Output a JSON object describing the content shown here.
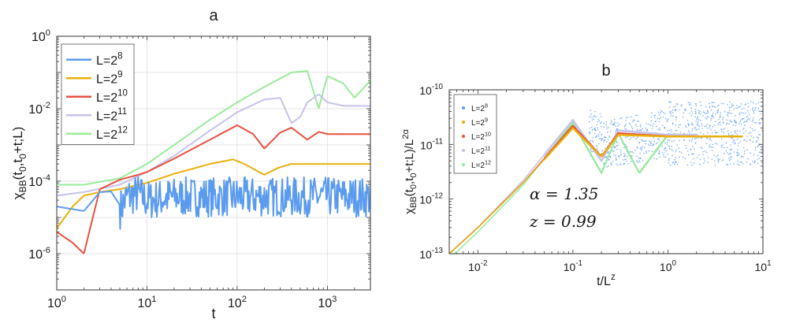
{
  "chart_data": [
    {
      "panel_label": "a",
      "type": "line",
      "title": "a",
      "xlabel": "t",
      "ylabel": "χ_BB(t_0,t_0+t;L)",
      "xscale": "log",
      "yscale": "log",
      "xlim": [
        1,
        3000
      ],
      "ylim": [
        1e-07,
        1
      ],
      "x_ticks": [
        {
          "value": 1,
          "base": "10",
          "exp": "0"
        },
        {
          "value": 10,
          "base": "10",
          "exp": "1"
        },
        {
          "value": 100,
          "base": "10",
          "exp": "2"
        },
        {
          "value": 1000,
          "base": "10",
          "exp": "3"
        }
      ],
      "y_ticks": [
        {
          "value": 1e-06,
          "base": "10",
          "exp": "-6"
        },
        {
          "value": 0.0001,
          "base": "10",
          "exp": "-4"
        },
        {
          "value": 0.01,
          "base": "10",
          "exp": "-2"
        },
        {
          "value": 1,
          "base": "10",
          "exp": "0"
        }
      ],
      "grid": true,
      "legend_position": "top-left",
      "series": [
        {
          "name_base": "L=2",
          "name_exp": "8",
          "color": "#5b9bef",
          "points": [
            [
              1,
              2e-05
            ],
            [
              2,
              1.5e-05
            ],
            [
              3,
              5e-05
            ],
            [
              4,
              5.2e-05
            ],
            [
              5,
              2.2e-05
            ],
            [
              6,
              5e-05
            ],
            [
              8,
              6e-05
            ],
            [
              10,
              4e-05
            ],
            [
              20,
              5e-05
            ],
            [
              40,
              5e-05
            ],
            [
              100,
              5e-05
            ],
            [
              300,
              5e-05
            ],
            [
              1000,
              5e-05
            ],
            [
              3000,
              5e-05
            ]
          ],
          "noise_from": 5
        },
        {
          "name_base": "L=2",
          "name_exp": "9",
          "color": "#e9b00b",
          "points": [
            [
              1,
              5e-06
            ],
            [
              1.5,
              2e-05
            ],
            [
              2,
              4e-05
            ],
            [
              3,
              5e-05
            ],
            [
              5,
              6e-05
            ],
            [
              8,
              8e-05
            ],
            [
              10,
              9e-05
            ],
            [
              20,
              0.00016
            ],
            [
              50,
              0.0003
            ],
            [
              90,
              0.0004
            ],
            [
              120,
              0.0003
            ],
            [
              200,
              0.00015
            ],
            [
              280,
              0.00023
            ],
            [
              400,
              0.0003
            ],
            [
              1000,
              0.0003
            ],
            [
              3000,
              0.0003
            ]
          ]
        },
        {
          "name_base": "L=2",
          "name_exp": "10",
          "color": "#e8513f",
          "points": [
            [
              1,
              4e-06
            ],
            [
              1.5,
              2e-06
            ],
            [
              2,
              1e-06
            ],
            [
              3,
              6e-05
            ],
            [
              5,
              0.00011
            ],
            [
              8,
              0.00015
            ],
            [
              10,
              0.00018
            ],
            [
              20,
              0.00042
            ],
            [
              50,
              0.0014
            ],
            [
              100,
              0.0035
            ],
            [
              150,
              0.002
            ],
            [
              200,
              0.0008
            ],
            [
              300,
              0.0022
            ],
            [
              400,
              0.003
            ],
            [
              600,
              0.0014
            ],
            [
              800,
              0.0023
            ],
            [
              1000,
              0.002
            ],
            [
              3000,
              0.002
            ]
          ]
        },
        {
          "name_base": "L=2",
          "name_exp": "11",
          "color": "#c6c2ea",
          "points": [
            [
              1,
              4e-05
            ],
            [
              2,
              5e-05
            ],
            [
              5,
              8e-05
            ],
            [
              10,
              0.00018
            ],
            [
              20,
              0.0005
            ],
            [
              50,
              0.0025
            ],
            [
              100,
              0.008
            ],
            [
              200,
              0.018
            ],
            [
              300,
              0.02
            ],
            [
              400,
              0.004
            ],
            [
              500,
              0.006
            ],
            [
              600,
              0.015
            ],
            [
              800,
              0.025
            ],
            [
              1000,
              0.015
            ],
            [
              1500,
              0.012
            ],
            [
              3000,
              0.012
            ]
          ]
        },
        {
          "name_base": "L=2",
          "name_exp": "12",
          "color": "#9aeb9c",
          "points": [
            [
              1,
              8e-05
            ],
            [
              2,
              8e-05
            ],
            [
              5,
              0.00012
            ],
            [
              10,
              0.0003
            ],
            [
              20,
              0.001
            ],
            [
              50,
              0.005
            ],
            [
              100,
              0.015
            ],
            [
              200,
              0.04
            ],
            [
              400,
              0.1
            ],
            [
              600,
              0.11
            ],
            [
              800,
              0.01
            ],
            [
              1000,
              0.08
            ],
            [
              1500,
              0.05
            ],
            [
              2000,
              0.02
            ],
            [
              3000,
              0.06
            ]
          ]
        }
      ]
    },
    {
      "panel_label": "b",
      "type": "scatter",
      "title": "b",
      "xlabel": "t/L^z",
      "ylabel": "χ_BB(t_0,t_0+t;L)/L^2α",
      "xscale": "log",
      "yscale": "log",
      "xlim": [
        0.005,
        10
      ],
      "ylim": [
        1e-13,
        1e-10
      ],
      "x_ticks": [
        {
          "value": 0.01,
          "base": "10",
          "exp": "-2"
        },
        {
          "value": 0.1,
          "base": "10",
          "exp": "-1"
        },
        {
          "value": 1,
          "base": "10",
          "exp": "0"
        },
        {
          "value": 10,
          "base": "10",
          "exp": "1"
        }
      ],
      "y_ticks": [
        {
          "value": 1e-13,
          "base": "10",
          "exp": "-13"
        },
        {
          "value": 1e-12,
          "base": "10",
          "exp": "-12"
        },
        {
          "value": 1e-11,
          "base": "10",
          "exp": "-11"
        },
        {
          "value": 1e-10,
          "base": "10",
          "exp": "-10"
        }
      ],
      "grid": false,
      "legend_position": "top-left",
      "annotations": [
        {
          "text": "α = 1.35"
        },
        {
          "text": "z = 0.99"
        }
      ],
      "series": [
        {
          "name_base": "L=2",
          "name_exp": "8",
          "color": "#5b9bef",
          "points": [
            [
              0.2,
              1e-11
            ],
            [
              1,
              1.6e-11
            ],
            [
              10,
              1.6e-11
            ]
          ],
          "scatter_cloud": true
        },
        {
          "name_base": "L=2",
          "name_exp": "9",
          "color": "#e9b00b",
          "points": [
            [
              0.005,
              1e-13
            ],
            [
              0.01,
              3e-13
            ],
            [
              0.03,
              2e-12
            ],
            [
              0.1,
              2e-11
            ],
            [
              0.2,
              6e-12
            ],
            [
              0.3,
              1.5e-11
            ],
            [
              1,
              1.4e-11
            ],
            [
              6,
              1.4e-11
            ]
          ]
        },
        {
          "name_base": "L=2",
          "name_exp": "10",
          "color": "#e8513f",
          "points": [
            [
              0.005,
              1e-13
            ],
            [
              0.01,
              3e-13
            ],
            [
              0.03,
              2e-12
            ],
            [
              0.1,
              2.2e-11
            ],
            [
              0.2,
              6e-12
            ],
            [
              0.3,
              1.6e-11
            ],
            [
              1,
              1.4e-11
            ],
            [
              3,
              1.4e-11
            ]
          ]
        },
        {
          "name_base": "L=2",
          "name_exp": "11",
          "color": "#c6c2ea",
          "points": [
            [
              0.005,
              1e-13
            ],
            [
              0.01,
              3e-13
            ],
            [
              0.03,
              2.2e-12
            ],
            [
              0.1,
              2.8e-11
            ],
            [
              0.2,
              5e-12
            ],
            [
              0.3,
              1.8e-11
            ],
            [
              1,
              1.5e-11
            ],
            [
              2,
              1.5e-11
            ]
          ]
        },
        {
          "name_base": "L=2",
          "name_exp": "12",
          "color": "#9aeb9c",
          "points": [
            [
              0.005,
              8e-14
            ],
            [
              0.01,
              2.5e-13
            ],
            [
              0.03,
              1.8e-12
            ],
            [
              0.1,
              2.5e-11
            ],
            [
              0.2,
              3e-12
            ],
            [
              0.3,
              1.6e-11
            ],
            [
              0.5,
              3e-12
            ],
            [
              1,
              1.5e-11
            ],
            [
              1.5,
              1.5e-11
            ]
          ]
        }
      ]
    }
  ]
}
